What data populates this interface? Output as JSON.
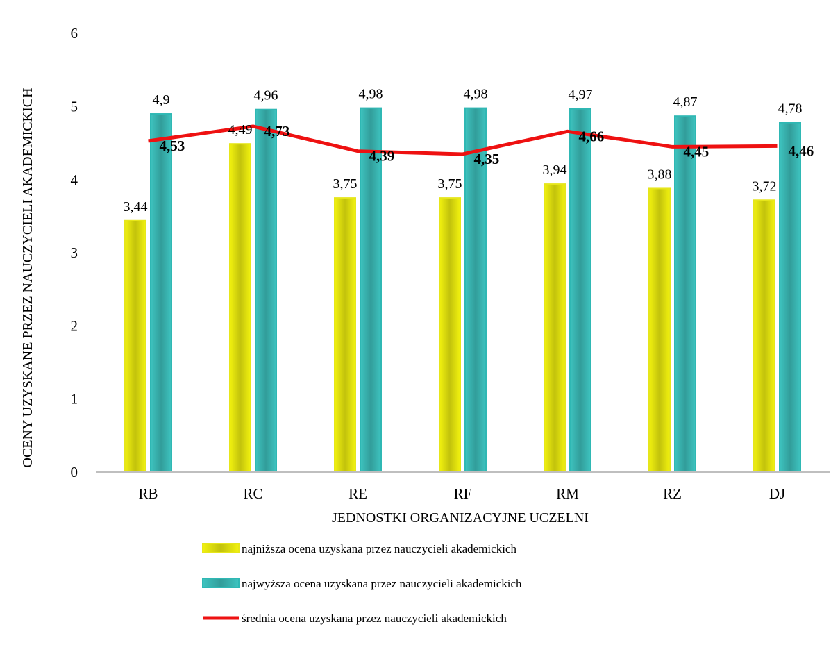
{
  "chart_data": {
    "type": "bar",
    "categories": [
      "RB",
      "RC",
      "RE",
      "RF",
      "RM",
      "RZ",
      "DJ"
    ],
    "series": [
      {
        "name": "najniższa ocena uzyskana przez nauczycieli akademickich",
        "type": "bar",
        "color": "#f2f20f",
        "border": "#e6e61a",
        "values": [
          3.44,
          4.49,
          3.75,
          3.75,
          3.94,
          3.88,
          3.72
        ],
        "labels": [
          "3,44",
          "4,49",
          "3,75",
          "3,75",
          "3,94",
          "3,88",
          "3,72"
        ]
      },
      {
        "name": "najwyższa ocena uzyskana przez nauczycieli akademickich",
        "type": "bar",
        "color": "#3ec4c0",
        "border": "#2fb8b4",
        "values": [
          4.9,
          4.96,
          4.98,
          4.98,
          4.97,
          4.87,
          4.78
        ],
        "labels": [
          "4,9",
          "4,96",
          "4,98",
          "4,98",
          "4,97",
          "4,87",
          "4,78"
        ]
      },
      {
        "name": "średnia ocena uzyskana przez nauczycieli akademickich",
        "type": "line",
        "color": "#ee1111",
        "values": [
          4.53,
          4.73,
          4.39,
          4.35,
          4.66,
          4.45,
          4.46
        ],
        "labels": [
          "4,53",
          "4,73",
          "4,39",
          "4,35",
          "4,66",
          "4,45",
          "4,46"
        ]
      }
    ],
    "xlabel": "JEDNOSTKI ORGANIZACYJNE UCZELNI",
    "ylabel": "OCENY UZYSKANE PRZEZ NAUCZYCIELI AKADEMICKICH",
    "ylim": [
      0,
      6
    ],
    "yticks": [
      "0",
      "1",
      "2",
      "3",
      "4",
      "5",
      "6"
    ],
    "grid": false,
    "legend_position": "bottom"
  }
}
